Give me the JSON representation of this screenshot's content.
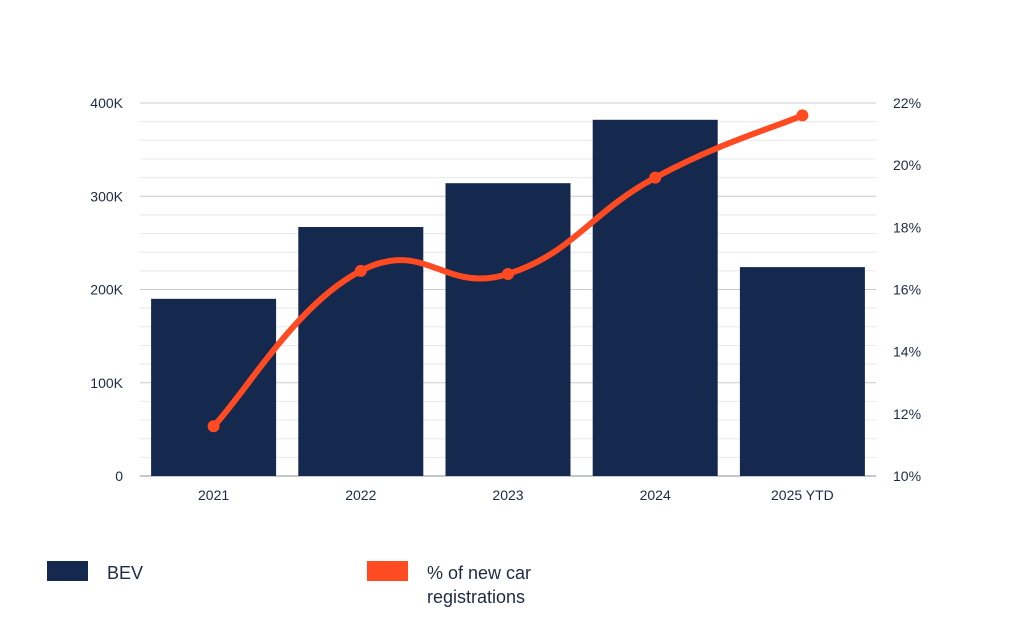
{
  "chart_data": {
    "type": "bar",
    "categories": [
      "2021",
      "2022",
      "2023",
      "2024",
      "2025 YTD"
    ],
    "series": [
      {
        "name": "BEV",
        "type": "bar",
        "axis": "left",
        "color": "#15284d",
        "values": [
          190000,
          267000,
          314000,
          382000,
          224000
        ]
      },
      {
        "name": "% of new car registrations",
        "type": "line",
        "axis": "right",
        "color": "#ff4a22",
        "values": [
          11.6,
          16.6,
          16.5,
          19.6,
          21.6
        ]
      }
    ],
    "y_left": {
      "ticks": [
        "0",
        "100K",
        "200K",
        "300K",
        "400K"
      ],
      "ylim": [
        0,
        400000
      ]
    },
    "y_right": {
      "ticks": [
        "10%",
        "12%",
        "14%",
        "16%",
        "18%",
        "20%",
        "22%"
      ],
      "ylim": [
        10,
        22
      ]
    },
    "grid": true,
    "legend_position": "bottom"
  },
  "legend": {
    "bev_label": "BEV",
    "pct_label_line1": "% of new car",
    "pct_label_line2": "registrations"
  }
}
